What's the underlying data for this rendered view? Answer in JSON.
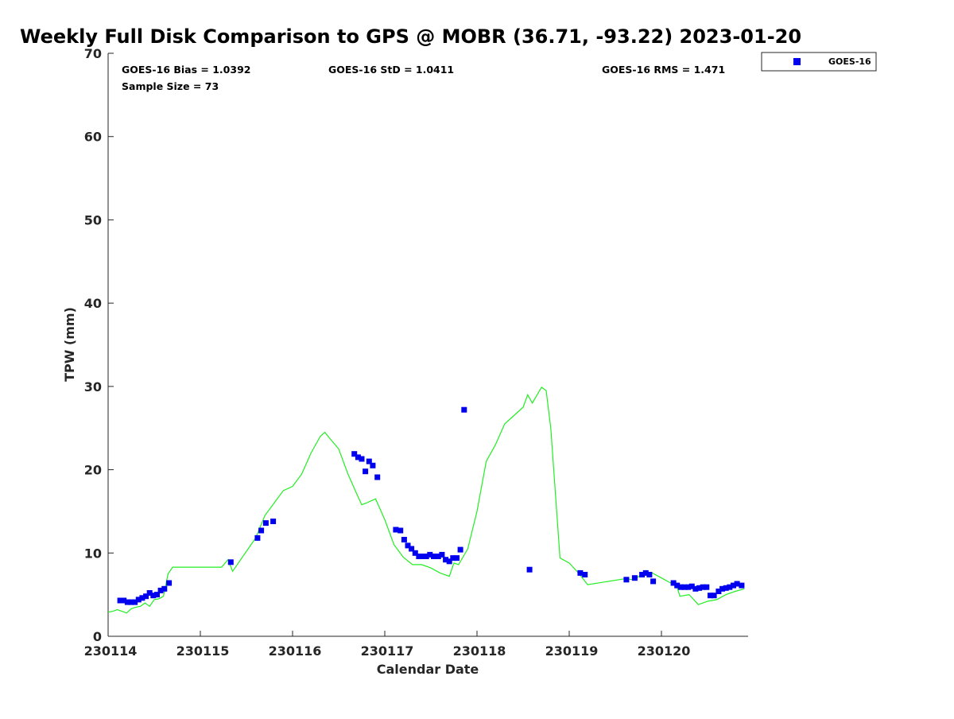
{
  "chart_data": {
    "type": "scatter",
    "title": "Weekly Full Disk Comparison to GPS @ MOBR (36.71, -93.22) 2023-01-20",
    "xlabel": "Calendar Date",
    "ylabel": "TPW (mm)",
    "xlim": [
      230114,
      230121
    ],
    "ylim": [
      0,
      70
    ],
    "x_ticks": [
      230114,
      230115,
      230116,
      230117,
      230118,
      230119,
      230120
    ],
    "x_tick_labels": [
      "230114",
      "230115",
      "230116",
      "230117",
      "230118",
      "230119",
      "230120"
    ],
    "y_ticks": [
      0,
      10,
      20,
      30,
      40,
      50,
      60,
      70
    ],
    "y_tick_labels": [
      "0",
      "10",
      "20",
      "30",
      "40",
      "50",
      "60",
      "70"
    ],
    "grid": false,
    "legend_position": "top-right",
    "stats": {
      "bias": "GOES-16 Bias = 1.0392",
      "std": "GOES-16 StD = 1.0411",
      "rms": "GOES-16 RMS = 1.471",
      "sample_size": "Sample Size = 73"
    },
    "series": [
      {
        "name": "GOES-16",
        "kind": "markers",
        "color": "#0000ee",
        "x": [
          230114.13,
          230114.17,
          230114.21,
          230114.25,
          230114.29,
          230114.33,
          230114.37,
          230114.41,
          230114.45,
          230114.49,
          230114.53,
          230114.57,
          230114.61,
          230114.66,
          230115.33,
          230115.62,
          230115.66,
          230115.71,
          230115.79,
          230116.67,
          230116.71,
          230116.75,
          230116.79,
          230116.83,
          230116.87,
          230116.92,
          230117.12,
          230117.17,
          230117.21,
          230117.25,
          230117.29,
          230117.33,
          230117.37,
          230117.41,
          230117.45,
          230117.49,
          230117.53,
          230117.58,
          230117.62,
          230117.66,
          230117.7,
          230117.74,
          230117.78,
          230117.82,
          230117.86,
          230118.57,
          230119.12,
          230119.17,
          230119.62,
          230119.71,
          230119.79,
          230119.83,
          230119.87,
          230119.91,
          230120.13,
          230120.17,
          230120.21,
          230120.25,
          230120.29,
          230120.33,
          230120.37,
          230120.41,
          230120.45,
          230120.49,
          230120.53,
          230120.57,
          230120.62,
          230120.66,
          230120.7,
          230120.74,
          230120.78,
          230120.82,
          230120.87
        ],
        "y": [
          4.3,
          4.3,
          4.1,
          4.1,
          4.1,
          4.4,
          4.6,
          4.8,
          5.2,
          4.9,
          5.0,
          5.5,
          5.7,
          6.4,
          8.9,
          11.8,
          12.7,
          13.6,
          13.8,
          21.9,
          21.5,
          21.3,
          19.8,
          21.0,
          20.5,
          19.1,
          12.8,
          12.7,
          11.6,
          10.9,
          10.5,
          10.0,
          9.6,
          9.6,
          9.6,
          9.8,
          9.6,
          9.6,
          9.8,
          9.2,
          9.0,
          9.4,
          9.4,
          10.4,
          27.2,
          8.0,
          7.6,
          7.4,
          6.8,
          7.0,
          7.4,
          7.6,
          7.4,
          6.6,
          6.4,
          6.1,
          5.9,
          5.9,
          5.9,
          6.0,
          5.7,
          5.8,
          5.9,
          5.9,
          4.9,
          4.9,
          5.4,
          5.7,
          5.8,
          5.9,
          6.1,
          6.3,
          6.1
        ]
      },
      {
        "name": "GPS",
        "kind": "line",
        "color": "#22ee22",
        "x": [
          230114.0,
          230114.05,
          230114.1,
          230114.15,
          230114.2,
          230114.25,
          230114.3,
          230114.35,
          230114.4,
          230114.45,
          230114.5,
          230114.55,
          230114.6,
          230114.65,
          230114.7,
          230115.0,
          230115.23,
          230115.3,
          230115.35,
          230115.6,
          230115.7,
          230115.8,
          230115.9,
          230116.0,
          230116.1,
          230116.2,
          230116.3,
          230116.35,
          230116.4,
          230116.5,
          230116.6,
          230116.7,
          230116.75,
          230116.8,
          230116.9,
          230117.0,
          230117.1,
          230117.2,
          230117.3,
          230117.4,
          230117.5,
          230117.6,
          230117.7,
          230117.75,
          230117.8,
          230117.9,
          230118.0,
          230118.1,
          230118.2,
          230118.3,
          230118.4,
          230118.5,
          230118.55,
          230118.6,
          230118.7,
          230118.75,
          230118.8,
          230118.9,
          230119.0,
          230119.1,
          230119.2,
          230119.6,
          230119.7,
          230119.8,
          230119.9,
          230120.0,
          230120.1,
          230120.15,
          230120.2,
          230120.3,
          230120.4,
          230120.5,
          230120.6,
          230120.7,
          230120.8,
          230120.9
        ],
        "y": [
          2.9,
          3.0,
          3.2,
          3.0,
          2.8,
          3.3,
          3.5,
          3.6,
          4.0,
          3.6,
          4.4,
          4.5,
          4.8,
          7.5,
          8.3,
          8.3,
          8.3,
          9.2,
          7.8,
          11.8,
          14.5,
          16.0,
          17.5,
          18.0,
          19.5,
          22.0,
          24.0,
          24.5,
          23.8,
          22.5,
          19.5,
          17.0,
          15.8,
          16.0,
          16.5,
          14.0,
          11.0,
          9.5,
          8.6,
          8.6,
          8.2,
          7.6,
          7.2,
          8.8,
          8.6,
          10.5,
          15.0,
          21.0,
          23.0,
          25.5,
          26.5,
          27.5,
          29.0,
          28.0,
          29.9,
          29.5,
          25.0,
          9.4,
          8.8,
          7.6,
          6.2,
          6.9,
          6.8,
          7.5,
          7.6,
          7.0,
          6.4,
          6.6,
          4.8,
          5.0,
          3.8,
          4.2,
          4.4,
          5.0,
          5.4,
          5.7
        ]
      }
    ]
  }
}
